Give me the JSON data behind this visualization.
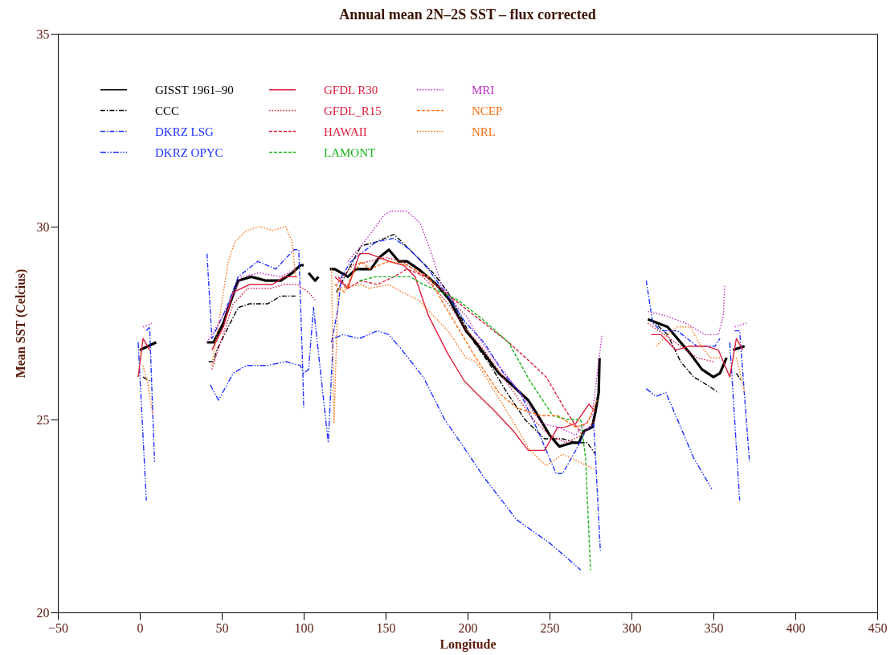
{
  "chart_data": {
    "type": "line",
    "title": "Annual mean 2N–2S SST – flux corrected",
    "xlabel": "Longitude",
    "ylabel": "Mean SST (Celcius)",
    "xlim": [
      -50,
      450
    ],
    "xticks": [
      -50,
      0,
      50,
      100,
      150,
      200,
      250,
      300,
      350,
      400,
      450
    ],
    "ylim": [
      20,
      35
    ],
    "yticks": [
      20,
      25,
      30,
      35
    ],
    "legend": "top left",
    "series": [
      {
        "name": "GISST 1961–90",
        "color": "#000000",
        "line_style": "solid",
        "x": [
          0,
          5,
          10,
          null,
          41,
          45,
          51,
          55,
          60,
          68,
          77,
          86,
          93,
          98,
          100,
          null,
          103,
          107,
          109,
          null,
          116,
          119,
          127,
          132,
          141,
          146,
          152,
          158,
          163,
          170,
          181,
          189,
          194,
          199,
          205,
          212,
          219,
          227,
          237,
          243,
          250,
          256,
          264,
          268,
          271,
          276,
          278,
          280,
          280.5,
          null,
          310,
          322,
          330,
          336,
          343,
          350,
          354,
          358,
          null,
          362,
          369
        ],
        "values": [
          26.8,
          26.9,
          27.0,
          null,
          27.0,
          27.0,
          27.5,
          28.0,
          28.6,
          28.7,
          28.6,
          28.6,
          28.8,
          29.0,
          29.0,
          null,
          28.8,
          28.6,
          28.7,
          null,
          28.9,
          28.9,
          28.7,
          28.9,
          28.9,
          29.2,
          29.4,
          29.1,
          29.1,
          28.9,
          28.5,
          28.1,
          27.7,
          27.3,
          27.0,
          26.6,
          26.2,
          25.9,
          25.5,
          25.1,
          24.6,
          24.3,
          24.4,
          24.4,
          24.7,
          24.8,
          25.2,
          25.7,
          26.6,
          null,
          27.6,
          27.4,
          27.0,
          26.7,
          26.3,
          26.1,
          26.2,
          26.6,
          null,
          26.8,
          26.9
        ]
      },
      {
        "name": "CCC",
        "color": "#000000",
        "line_style": "dashdot",
        "x": [
          2,
          6,
          null,
          42,
          45,
          47,
          54,
          60,
          67,
          78,
          86,
          95,
          null,
          120,
          135,
          144,
          155,
          160,
          179,
          188,
          204,
          214,
          224,
          235,
          247,
          258,
          266,
          273,
          278,
          null,
          312,
          322,
          330,
          338,
          346,
          353,
          null,
          364,
          367
        ],
        "values": [
          26.1,
          26.0,
          null,
          26.5,
          26.5,
          26.8,
          27.4,
          27.9,
          28.0,
          28.0,
          28.2,
          28.2,
          null,
          28.3,
          29.5,
          29.6,
          29.8,
          29.6,
          28.8,
          28.3,
          27.0,
          26.4,
          25.7,
          25.0,
          24.5,
          24.5,
          24.4,
          24.4,
          24.1,
          null,
          27.6,
          27.2,
          26.5,
          26.1,
          25.9,
          25.7,
          null,
          26.2,
          26.0
        ]
      },
      {
        "name": "DKRZ LSG",
        "color": "#1e32ff",
        "line_style": "dashdot",
        "x": [
          4,
          6,
          9,
          null,
          41,
          44,
          53,
          60,
          72,
          83,
          94,
          97,
          99.5,
          100,
          null,
          117,
          121,
          123,
          129,
          144,
          155,
          165,
          176,
          188,
          199,
          210,
          222,
          232,
          243,
          254,
          258,
          266,
          272,
          277,
          281,
          null,
          309,
          313,
          318,
          328,
          340,
          351,
          354,
          null,
          363,
          366,
          372
        ],
        "values": [
          27.3,
          27.4,
          23.9,
          null,
          29.3,
          27.1,
          27.9,
          28.7,
          29.1,
          28.9,
          29.4,
          29.4,
          26.2,
          25.3,
          null,
          27.0,
          27.9,
          28.7,
          29.1,
          29.6,
          29.7,
          29.4,
          28.9,
          28.2,
          27.5,
          27.0,
          26.2,
          25.7,
          24.7,
          23.6,
          23.6,
          24.2,
          24.7,
          24.9,
          21.6,
          null,
          28.6,
          27.5,
          27.3,
          27.3,
          26.9,
          26.9,
          27.1,
          null,
          27.3,
          27.3,
          23.9
        ]
      },
      {
        "name": "DKRZ OPYC",
        "color": "#1e32ff",
        "line_style": "dashdotdot",
        "x": [
          -1,
          4,
          null,
          43,
          48,
          57,
          65,
          78,
          89,
          98,
          100,
          103,
          106,
          115,
          118,
          124,
          134,
          145,
          152,
          160,
          173,
          186,
          199,
          210,
          230,
          250,
          261,
          269,
          null,
          309,
          315,
          321,
          330,
          338,
          349,
          null,
          360,
          366
        ],
        "values": [
          27.0,
          22.9,
          null,
          25.9,
          25.5,
          26.2,
          26.4,
          26.4,
          26.5,
          26.4,
          26.2,
          26.3,
          27.9,
          24.4,
          27.1,
          27.2,
          27.1,
          27.3,
          27.2,
          26.8,
          26.1,
          25.0,
          24.2,
          23.5,
          22.4,
          21.8,
          21.4,
          21.1,
          null,
          25.8,
          25.6,
          25.7,
          24.8,
          24.0,
          23.2,
          null,
          27.0,
          22.9
        ]
      },
      {
        "name": "GFDL R30",
        "color": "#dc1e3c",
        "line_style": "solid",
        "x": [
          -1,
          2,
          6,
          null,
          44,
          51,
          57,
          67,
          81,
          88,
          96,
          null,
          119,
          127,
          134,
          140,
          152,
          161,
          168,
          176,
          188,
          198,
          205,
          217,
          228,
          237,
          247,
          255,
          259,
          266,
          274,
          278,
          null,
          312,
          318,
          327,
          335,
          346,
          353,
          360,
          364,
          368
        ],
        "values": [
          26.1,
          27.1,
          26.8,
          null,
          26.8,
          27.4,
          28.3,
          28.5,
          28.5,
          28.7,
          28.7,
          null,
          28.7,
          28.4,
          29.3,
          29.3,
          29.1,
          29.0,
          28.7,
          27.7,
          26.7,
          26.0,
          25.7,
          25.2,
          24.7,
          24.2,
          24.2,
          24.8,
          24.8,
          24.9,
          25.4,
          25.2,
          null,
          27.2,
          27.2,
          26.8,
          26.9,
          26.9,
          26.8,
          26.1,
          27.1,
          26.8
        ]
      },
      {
        "name": "GFDL_R15",
        "color": "#dc1e3c",
        "line_style": "dotted",
        "x": [
          44,
          50,
          57,
          66,
          80,
          88,
          96,
          103,
          107,
          null,
          120,
          130,
          140,
          150,
          160,
          170,
          180,
          190,
          200,
          210,
          220,
          230,
          240,
          250,
          260,
          270,
          278,
          null,
          310,
          320,
          330,
          340,
          350
        ],
        "values": [
          26.3,
          27.1,
          28.0,
          28.4,
          28.4,
          28.5,
          28.5,
          28.3,
          28.1,
          null,
          28.5,
          29.0,
          29.1,
          29.2,
          29.1,
          28.8,
          28.4,
          27.9,
          27.3,
          26.8,
          26.2,
          25.6,
          25.0,
          24.6,
          24.4,
          24.6,
          25.0,
          null,
          27.5,
          27.2,
          26.9,
          26.6,
          26.5
        ]
      },
      {
        "name": "HAWAII",
        "color": "#dc1e3c",
        "line_style": "dashed",
        "x": [
          121,
          127,
          135,
          145,
          155,
          163,
          175,
          189,
          210,
          225,
          238,
          248,
          259,
          265,
          270
        ],
        "values": [
          28.7,
          28.4,
          28.6,
          28.5,
          28.7,
          28.9,
          28.7,
          28.2,
          27.5,
          27.0,
          26.5,
          26.1,
          25.3,
          24.9,
          24.6
        ]
      },
      {
        "name": "LAMONT",
        "color": "#1ab21a",
        "line_style": "dashed",
        "x": [
          134,
          144,
          155,
          165,
          173,
          184,
          194,
          209,
          225,
          238,
          252,
          261,
          269,
          272,
          275
        ],
        "values": [
          28.6,
          28.7,
          28.7,
          28.7,
          28.5,
          28.3,
          28.1,
          27.6,
          27.0,
          26.0,
          25.1,
          25.0,
          25.0,
          24.0,
          21.1
        ]
      },
      {
        "name": "MRI",
        "color": "#c030c8",
        "line_style": "dotted",
        "x": [
          2,
          8,
          null,
          41,
          51,
          62,
          73,
          86,
          95,
          null,
          127,
          137,
          149,
          153,
          163,
          171,
          178,
          184,
          194,
          199,
          207,
          219,
          232,
          245,
          255,
          266,
          276,
          282,
          null,
          310,
          320,
          333,
          345,
          353,
          356,
          357,
          null,
          363,
          370
        ],
        "values": [
          27.4,
          27.5,
          null,
          27.0,
          27.7,
          28.7,
          28.8,
          28.7,
          28.9,
          null,
          29.1,
          29.6,
          30.3,
          30.4,
          30.4,
          30.1,
          29.3,
          28.5,
          27.9,
          27.7,
          27.1,
          26.4,
          25.7,
          24.9,
          24.8,
          24.6,
          25.1,
          27.2,
          null,
          27.8,
          27.7,
          27.5,
          27.2,
          27.2,
          27.7,
          28.5,
          null,
          27.4,
          27.5
        ]
      },
      {
        "name": "NCEP",
        "color": "#ff7010",
        "line_style": "dashed",
        "x": [
          119,
          125,
          129,
          135,
          140,
          152,
          163,
          176,
          184,
          191,
          198,
          205,
          219,
          230,
          245,
          255,
          266,
          273,
          279
        ],
        "values": [
          28.5,
          28.3,
          28.7,
          29.1,
          28.9,
          29.1,
          29.0,
          28.7,
          28.1,
          27.6,
          27.1,
          26.6,
          25.7,
          25.3,
          25.1,
          25.1,
          24.8,
          24.9,
          25.5
        ]
      },
      {
        "name": "NRL",
        "color": "#ff7010",
        "line_style": "dotted",
        "x": [
          2,
          5,
          8,
          null,
          44,
          54,
          58,
          65,
          73,
          81,
          89,
          93,
          95,
          null,
          117,
          118.5,
          121,
          135,
          140,
          152,
          160,
          170,
          179,
          188,
          199,
          205,
          214,
          227,
          238,
          248,
          258,
          278,
          null,
          315,
          322,
          328,
          336,
          341,
          348,
          355,
          null,
          364,
          369
        ],
        "values": [
          26.4,
          25.9,
          25.1,
          null,
          26.4,
          29.1,
          29.6,
          29.9,
          30.0,
          29.9,
          30.0,
          29.6,
          28.7,
          null,
          28.9,
          24.9,
          28.4,
          28.5,
          28.4,
          28.5,
          28.3,
          28.1,
          27.7,
          27.3,
          26.6,
          26.5,
          25.9,
          25.0,
          24.2,
          23.8,
          24.1,
          23.7,
          null,
          26.9,
          27.2,
          27.4,
          27.4,
          27.0,
          26.6,
          26.6,
          null,
          26.6,
          25.7
        ]
      }
    ]
  }
}
